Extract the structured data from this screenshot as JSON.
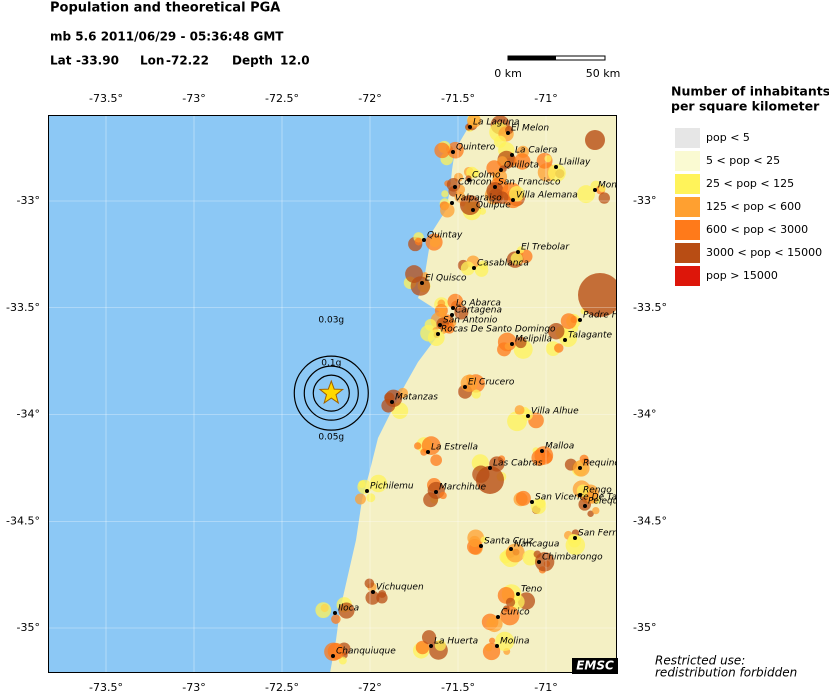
{
  "header": {
    "title": "Population and theoretical PGA",
    "event": "mb 5.6  2011/06/29 - 05:36:48 GMT",
    "lat_label": "Lat",
    "lon_label": "Lon",
    "depth_label": "Depth"
  },
  "epicenter": {
    "lat": {
      "value": -33.9,
      "label": "-33.90"
    },
    "lon": {
      "value": -72.22,
      "label": "-72.22"
    },
    "depth": {
      "value": 12,
      "label": "12.0"
    }
  },
  "scale_bar": {
    "start": "0 km",
    "end": "50 km"
  },
  "map": {
    "lon_ticks": [
      {
        "value": -73.5,
        "label": "-73.5°"
      },
      {
        "value": -73,
        "label": "-73°"
      },
      {
        "value": -72.5,
        "label": "-72.5°"
      },
      {
        "value": -72,
        "label": "-72°"
      },
      {
        "value": -71.5,
        "label": "-71.5°"
      },
      {
        "value": -71,
        "label": "-71°"
      }
    ],
    "lat_ticks": [
      {
        "value": -33,
        "label": "-33°"
      },
      {
        "value": -33.5,
        "label": "-33.5°"
      },
      {
        "value": -34,
        "label": "-34°"
      },
      {
        "value": -34.5,
        "label": "-34.5°"
      },
      {
        "value": -35,
        "label": "-35°"
      }
    ],
    "pga_labels": [
      "0.03g",
      "0.1g",
      "0.05g"
    ],
    "cities": [
      "La Laguna",
      "El Melon",
      "Quintero",
      "La Calera",
      "Quillota",
      "Llaillay",
      "Colmo",
      "Concon",
      "San Francisco",
      "Villa Alemana",
      "Valparaiso",
      "Quilpue",
      "Montenegro",
      "Quintay",
      "El Trebolar",
      "Casablanca",
      "El Quisco",
      "Lo Abarca",
      "Cartagena",
      "San Antonio",
      "Rocas De Santo Domingo",
      "Melipilla",
      "Talagante",
      "Padre Hurtado",
      "El Crucero",
      "Matanzas",
      "Villa Alhue",
      "La Estrella",
      "Malloa",
      "Las Cabras",
      "Requinoa",
      "Pichilemu",
      "Marchihue",
      "San Vicente De Tagua Tagua",
      "Rengo",
      "Pelequen",
      "Santa Cruz",
      "Nancagua",
      "San Fernando",
      "Chimbarongo",
      "Vichuquen",
      "Teno",
      "Iloca",
      "Curico",
      "La Huerta",
      "Molina",
      "Chanquiuque"
    ]
  },
  "legend": {
    "title_line1": "Number of inhabitants",
    "title_line2": "per square kilometer",
    "items": [
      {
        "label": "pop < 5",
        "color": "#e6e6e6"
      },
      {
        "label": "5 < pop < 25",
        "color": "#fafad2"
      },
      {
        "label": "25 < pop < 125",
        "color": "#fff35a"
      },
      {
        "label": "125 < pop < 600",
        "color": "#ffa030"
      },
      {
        "label": "600 < pop < 3000",
        "color": "#ff7a1a"
      },
      {
        "label": "3000 < pop < 15000",
        "color": "#b84d14"
      },
      {
        "label": "pop > 15000",
        "color": "#dd160a"
      }
    ]
  },
  "footer": {
    "logo": "EMSC",
    "line1": "Restricted use:",
    "line2": "redistribution forbidden"
  }
}
